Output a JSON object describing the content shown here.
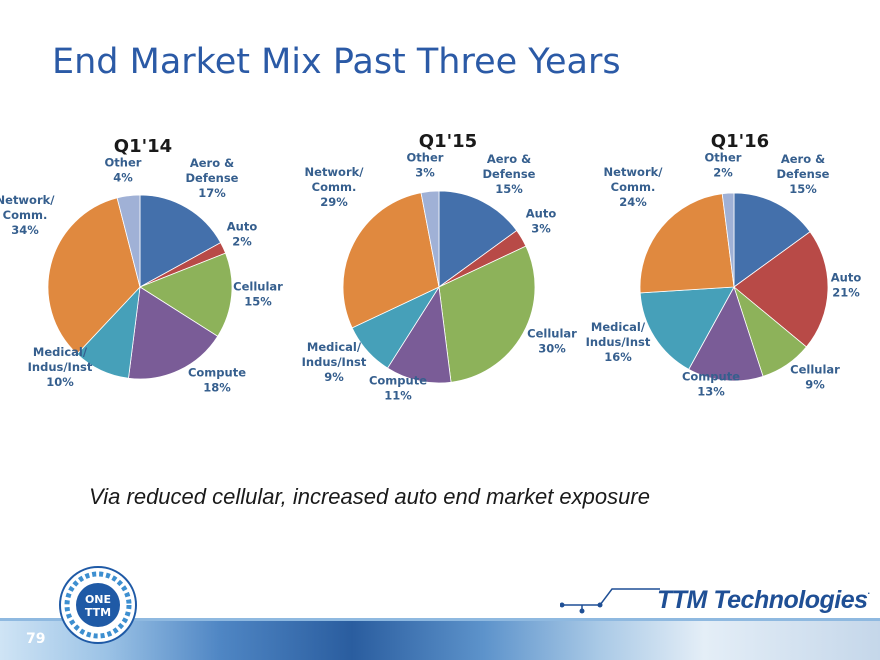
{
  "slide": {
    "title": "End Market Mix Past Three Years",
    "caption": "Via reduced cellular, increased auto end market exposure",
    "slide_number": "79",
    "brand_name": "TTM Technologies",
    "brand_mark": ".",
    "logo_text_top": "ONE",
    "logo_text_bottom": "TTM"
  },
  "colors": {
    "aero_defense": "#4470ab",
    "auto": "#b84a47",
    "cellular": "#8db25a",
    "compute": "#7a5c97",
    "medical": "#46a0b9",
    "network": "#e0893f",
    "other": "#a0b1d6",
    "title": "#2b5aa6",
    "label": "#365f8e"
  },
  "chart_data": [
    {
      "type": "pie",
      "title": "Q1'14",
      "slices": [
        {
          "key": "aero_defense",
          "label": [
            "Aero &",
            "Defense",
            "17%"
          ],
          "value": 17
        },
        {
          "key": "auto",
          "label": [
            "Auto",
            "2%"
          ],
          "value": 2
        },
        {
          "key": "cellular",
          "label": [
            "Cellular",
            "15%"
          ],
          "value": 15
        },
        {
          "key": "compute",
          "label": [
            "Compute",
            "18%"
          ],
          "value": 18
        },
        {
          "key": "medical",
          "label": [
            "Medical/",
            "Indus/Inst",
            "10%"
          ],
          "value": 10
        },
        {
          "key": "network",
          "label": [
            "Network/",
            "Comm.",
            "34%"
          ],
          "value": 34
        },
        {
          "key": "other",
          "label": [
            "Other",
            "4%"
          ],
          "value": 4
        }
      ]
    },
    {
      "type": "pie",
      "title": "Q1'15",
      "slices": [
        {
          "key": "aero_defense",
          "label": [
            "Aero &",
            "Defense",
            "15%"
          ],
          "value": 15
        },
        {
          "key": "auto",
          "label": [
            "Auto",
            "3%"
          ],
          "value": 3
        },
        {
          "key": "cellular",
          "label": [
            "Cellular",
            "30%"
          ],
          "value": 30
        },
        {
          "key": "compute",
          "label": [
            "Compute",
            "11%"
          ],
          "value": 11
        },
        {
          "key": "medical",
          "label": [
            "Medical/",
            "Indus/Inst",
            "9%"
          ],
          "value": 9
        },
        {
          "key": "network",
          "label": [
            "Network/",
            "Comm.",
            "29%"
          ],
          "value": 29
        },
        {
          "key": "other",
          "label": [
            "Other",
            "3%"
          ],
          "value": 3
        }
      ]
    },
    {
      "type": "pie",
      "title": "Q1'16",
      "slices": [
        {
          "key": "aero_defense",
          "label": [
            "Aero &",
            "Defense",
            "15%"
          ],
          "value": 15
        },
        {
          "key": "auto",
          "label": [
            "Auto",
            "21%"
          ],
          "value": 21
        },
        {
          "key": "cellular",
          "label": [
            "Cellular",
            "9%"
          ],
          "value": 9
        },
        {
          "key": "compute",
          "label": [
            "Compute",
            "13%"
          ],
          "value": 13
        },
        {
          "key": "medical",
          "label": [
            "Medical/",
            "Indus/Inst",
            "16%"
          ],
          "value": 16
        },
        {
          "key": "network",
          "label": [
            "Network/",
            "Comm.",
            "24%"
          ],
          "value": 24
        },
        {
          "key": "other",
          "label": [
            "Other",
            "2%"
          ],
          "value": 2
        }
      ]
    }
  ]
}
